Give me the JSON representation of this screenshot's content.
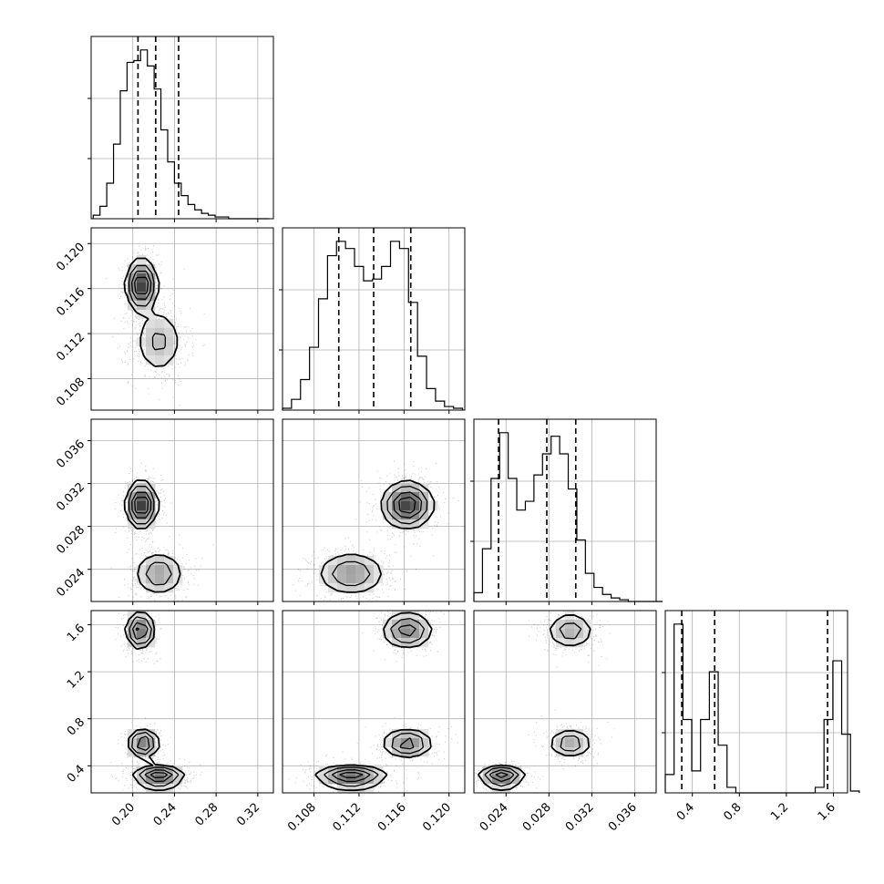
{
  "chart_data": {
    "type": "corner",
    "title": "",
    "grid": true,
    "parameters": [
      {
        "id": "p1",
        "range": [
          0.16,
          0.335
        ],
        "ticks": [
          0.2,
          0.24,
          0.28,
          0.32
        ],
        "tick_labels": [
          "0.20",
          "0.24",
          "0.28",
          "0.32"
        ],
        "quantiles": [
          0.205,
          0.222,
          0.244
        ],
        "hist_edges_start": 0.162,
        "hist_bin_width": 0.0065,
        "hist_counts": [
          2,
          7,
          20,
          42,
          72,
          88,
          89,
          95,
          86,
          73,
          50,
          32,
          20,
          13,
          8,
          5,
          3,
          2,
          1,
          1,
          0,
          0,
          0,
          0,
          0,
          0
        ]
      },
      {
        "id": "p2",
        "range": [
          0.1052,
          0.1214
        ],
        "ticks": [
          0.108,
          0.112,
          0.116,
          0.12
        ],
        "tick_labels": [
          "0.108",
          "0.112",
          "0.116",
          "0.120"
        ],
        "quantiles": [
          0.1102,
          0.1133,
          0.1166
        ],
        "hist_edges_start": 0.1052,
        "hist_bin_width": 0.0008,
        "hist_counts": [
          1,
          6,
          17,
          35,
          62,
          86,
          94,
          90,
          80,
          72,
          73,
          80,
          94,
          90,
          60,
          30,
          12,
          5,
          2,
          1
        ]
      },
      {
        "id": "p3",
        "range": [
          0.021,
          0.038
        ],
        "ticks": [
          0.024,
          0.028,
          0.032,
          0.036
        ],
        "tick_labels": [
          "0.024",
          "0.028",
          "0.032",
          "0.036"
        ],
        "quantiles": [
          0.0233,
          0.0278,
          0.0305
        ],
        "hist_edges_start": 0.021,
        "hist_bin_width": 0.0008,
        "hist_counts": [
          5,
          30,
          70,
          96,
          70,
          52,
          57,
          72,
          84,
          94,
          84,
          64,
          35,
          16,
          8,
          4,
          2,
          1,
          0,
          0,
          0,
          0
        ]
      },
      {
        "id": "p4",
        "range": [
          0.17,
          1.72
        ],
        "ticks": [
          0.4,
          0.8,
          1.2,
          1.6
        ],
        "tick_labels": [
          "0.4",
          "0.8",
          "1.2",
          "1.6"
        ],
        "quantiles": [
          0.31,
          0.59,
          1.55
        ],
        "hist_edges_start": 0.17,
        "hist_bin_width": 0.075,
        "hist_counts": [
          10,
          92,
          40,
          12,
          40,
          66,
          26,
          3,
          0,
          0,
          0,
          0,
          0,
          0,
          0,
          0,
          0,
          3,
          40,
          72,
          32,
          1
        ]
      }
    ],
    "modes": [
      {
        "p1": 0.207,
        "p2": 0.1163,
        "p3": 0.03,
        "p4": 1.55,
        "s1": 0.0065,
        "s2": 0.0011,
        "s3": 0.0011,
        "s4": 0.075,
        "weight": 0.33
      },
      {
        "p1": 0.225,
        "p2": 0.1113,
        "p3": 0.0236,
        "p4": 0.31,
        "s1": 0.0115,
        "s2": 0.0015,
        "s3": 0.001,
        "s4": 0.045,
        "weight": 0.4
      },
      {
        "p1": 0.21,
        "p2": 0.1163,
        "p3": 0.03,
        "p4": 0.59,
        "s1": 0.007,
        "s2": 0.0011,
        "s3": 0.001,
        "s4": 0.06,
        "weight": 0.27
      }
    ]
  }
}
